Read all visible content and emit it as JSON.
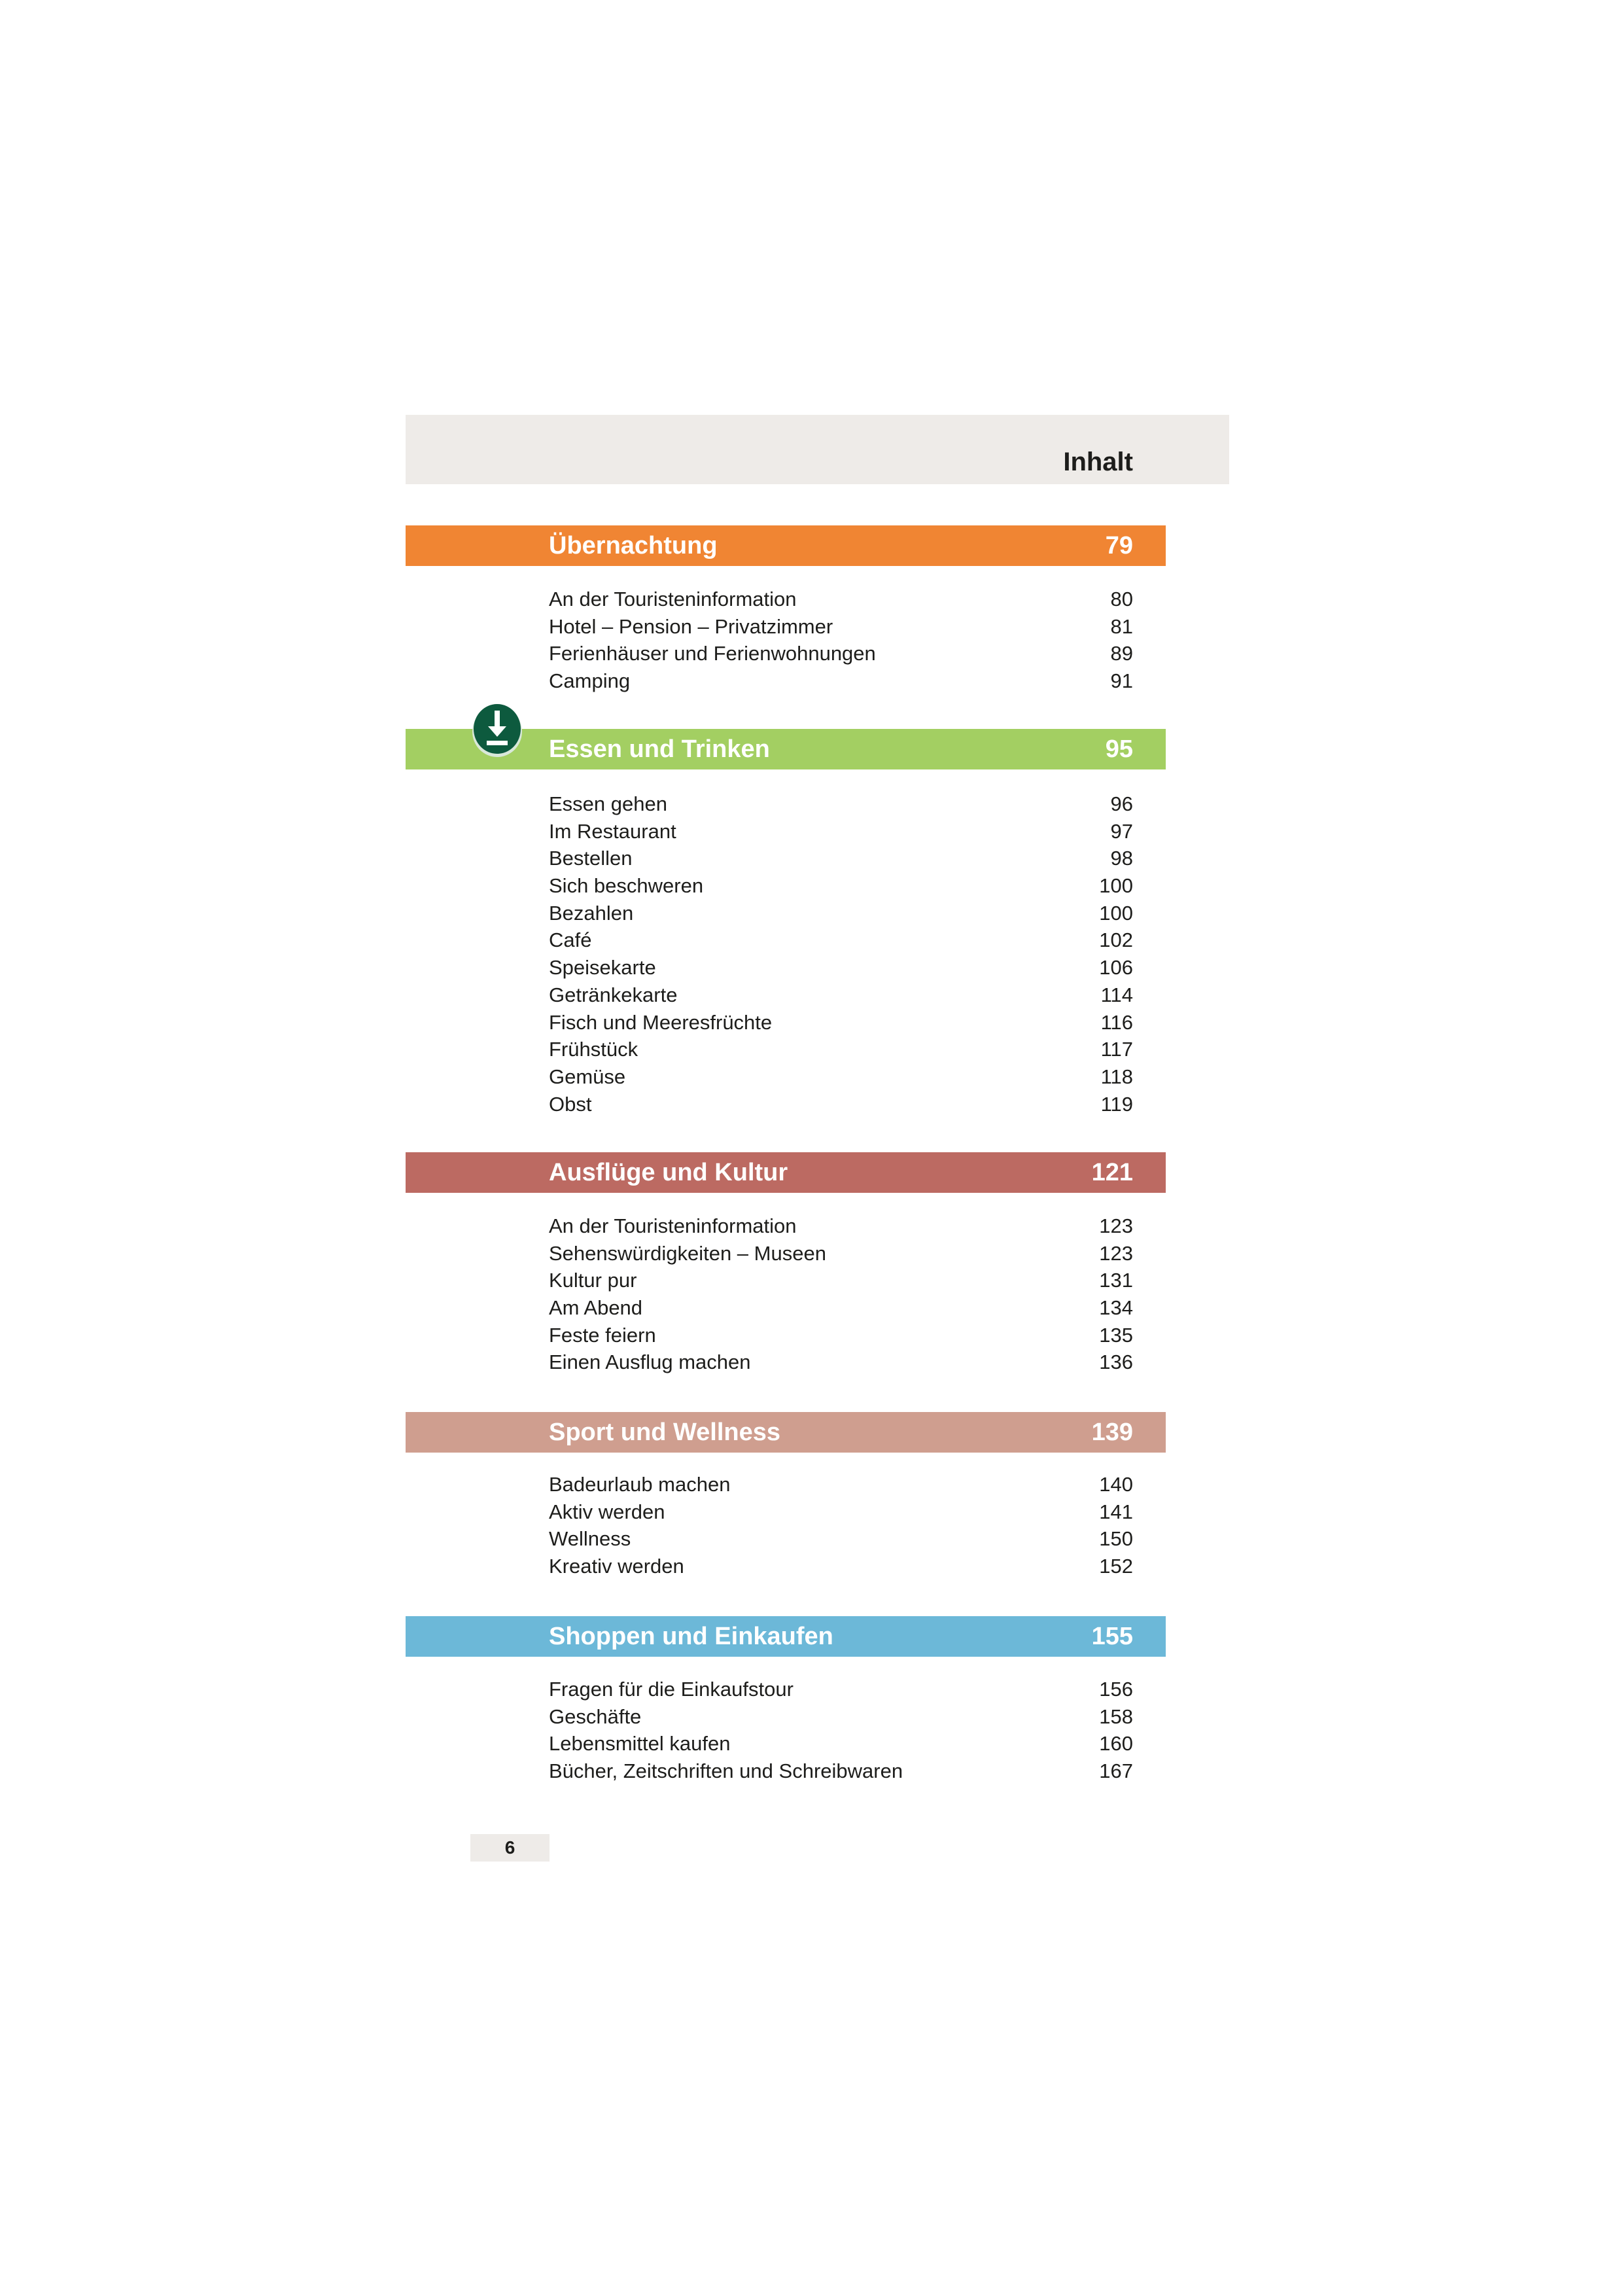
{
  "header": {
    "title": "Inhalt"
  },
  "sections": [
    {
      "title": "Übernachtung",
      "page": "79",
      "color": "#f08533",
      "items": [
        {
          "label": "An der Touristeninformation",
          "page": "80"
        },
        {
          "label": "Hotel – Pension – Privatzimmer",
          "page": "81"
        },
        {
          "label": "Ferienhäuser und Ferienwohnungen",
          "page": "89"
        },
        {
          "label": "Camping",
          "page": "91"
        }
      ]
    },
    {
      "title": "Essen und Trinken",
      "page": "95",
      "color": "#a3cf62",
      "icon": "download-icon",
      "items": [
        {
          "label": "Essen gehen",
          "page": "96"
        },
        {
          "label": "Im Restaurant",
          "page": "97"
        },
        {
          "label": "Bestellen",
          "page": "98"
        },
        {
          "label": "Sich beschweren",
          "page": "100"
        },
        {
          "label": "Bezahlen",
          "page": "100"
        },
        {
          "label": "Café",
          "page": "102"
        },
        {
          "label": "Speisekarte",
          "page": "106"
        },
        {
          "label": "Getränkekarte",
          "page": "114"
        },
        {
          "label": "Fisch und Meeresfrüchte",
          "page": "116"
        },
        {
          "label": "Frühstück",
          "page": "117"
        },
        {
          "label": "Gemüse",
          "page": "118"
        },
        {
          "label": "Obst",
          "page": "119"
        }
      ]
    },
    {
      "title": "Ausflüge und Kultur",
      "page": "121",
      "color": "#bc6a62",
      "items": [
        {
          "label": "An der Touristeninformation",
          "page": "123"
        },
        {
          "label": "Sehenswürdigkeiten – Museen",
          "page": "123"
        },
        {
          "label": "Kultur pur",
          "page": "131"
        },
        {
          "label": "Am Abend",
          "page": "134"
        },
        {
          "label": "Feste feiern",
          "page": "135"
        },
        {
          "label": "Einen Ausflug machen",
          "page": "136"
        }
      ]
    },
    {
      "title": "Sport und Wellness",
      "page": "139",
      "color": "#cf9e8f",
      "items": [
        {
          "label": "Badeurlaub machen",
          "page": "140"
        },
        {
          "label": "Aktiv werden",
          "page": "141"
        },
        {
          "label": "Wellness",
          "page": "150"
        },
        {
          "label": "Kreativ werden",
          "page": "152"
        }
      ]
    },
    {
      "title": "Shoppen und Einkaufen",
      "page": "155",
      "color": "#6cb8d8",
      "items": [
        {
          "label": "Fragen für die Einkaufstour",
          "page": "156"
        },
        {
          "label": "Geschäfte",
          "page": "158"
        },
        {
          "label": "Lebensmittel kaufen",
          "page": "160"
        },
        {
          "label": "Bücher, Zeitschriften und Schreibwaren",
          "page": "167"
        }
      ]
    }
  ],
  "footer": {
    "page_number": "6"
  }
}
